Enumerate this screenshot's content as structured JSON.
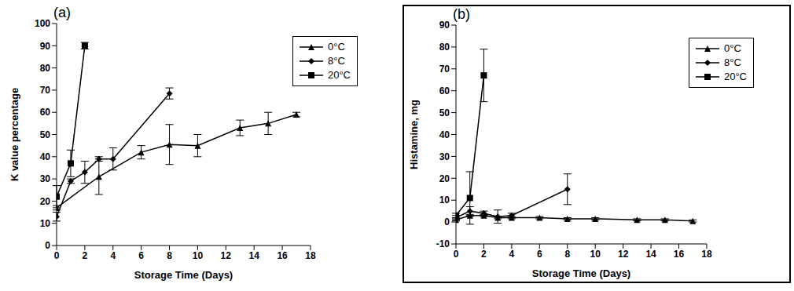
{
  "chart_data": [
    {
      "type": "line",
      "title": "(a)",
      "x_label": "Storage Time (Days)",
      "y_label": "K value percentage",
      "xlim": [
        0,
        18
      ],
      "xticks": [
        0,
        2,
        4,
        6,
        8,
        10,
        12,
        14,
        16,
        18
      ],
      "ylim": [
        0,
        100
      ],
      "yticks": [
        0,
        10,
        20,
        30,
        40,
        50,
        60,
        70,
        80,
        90,
        100
      ],
      "grid": false,
      "legend": "top right",
      "series": [
        {
          "name": "0°C",
          "color": "#000000",
          "marker": "triangle",
          "x": [
            0,
            3,
            6,
            8,
            10,
            13,
            15,
            17
          ],
          "values": [
            17,
            31,
            42,
            45.5,
            45,
            53,
            55,
            59
          ],
          "error": [
            1,
            8,
            3,
            9,
            5,
            3.5,
            5,
            1
          ]
        },
        {
          "name": "8°C",
          "color": "#000000",
          "marker": "diamond",
          "x": [
            0,
            1,
            2,
            3,
            4,
            8
          ],
          "values": [
            13,
            29,
            33,
            39,
            39,
            68.5
          ],
          "error": [
            2,
            1,
            5,
            1,
            5,
            2.5
          ]
        },
        {
          "name": "20°C",
          "color": "#000000",
          "marker": "square",
          "x": [
            0,
            1,
            2
          ],
          "values": [
            22,
            37,
            90
          ],
          "error": [
            5,
            6,
            1.5
          ]
        }
      ]
    },
    {
      "type": "line",
      "title": "(b)",
      "x_label": "Storage Time (Days)",
      "y_label": "Histamine, mg",
      "xlim": [
        0,
        18
      ],
      "xticks": [
        0,
        2,
        4,
        6,
        8,
        10,
        12,
        14,
        16,
        18
      ],
      "ylim": [
        -10,
        90
      ],
      "yticks": [
        -10,
        0,
        10,
        20,
        30,
        40,
        50,
        60,
        70,
        80,
        90
      ],
      "grid": false,
      "legend": "top right",
      "series": [
        {
          "name": "0°C",
          "color": "#000000",
          "marker": "triangle",
          "x": [
            0,
            1,
            2,
            3,
            4,
            6,
            8,
            10,
            13,
            15,
            17
          ],
          "values": [
            1,
            3,
            3,
            2,
            2,
            2,
            1.5,
            1.5,
            1,
            1,
            0.5
          ],
          "error": [
            0.5,
            0.5,
            0.5,
            0.5,
            0.5,
            0.5,
            0.5,
            0.5,
            0.5,
            0.5,
            0.5
          ]
        },
        {
          "name": "8°C",
          "color": "#000000",
          "marker": "diamond",
          "x": [
            0,
            1,
            2,
            3,
            4,
            8
          ],
          "values": [
            2,
            5,
            4,
            2.5,
            3,
            15
          ],
          "error": [
            1,
            2,
            1,
            3,
            1,
            7
          ]
        },
        {
          "name": "20°C",
          "color": "#000000",
          "marker": "square",
          "x": [
            0,
            1,
            2
          ],
          "values": [
            3,
            11,
            67
          ],
          "error": [
            1,
            12,
            12
          ]
        }
      ]
    }
  ]
}
